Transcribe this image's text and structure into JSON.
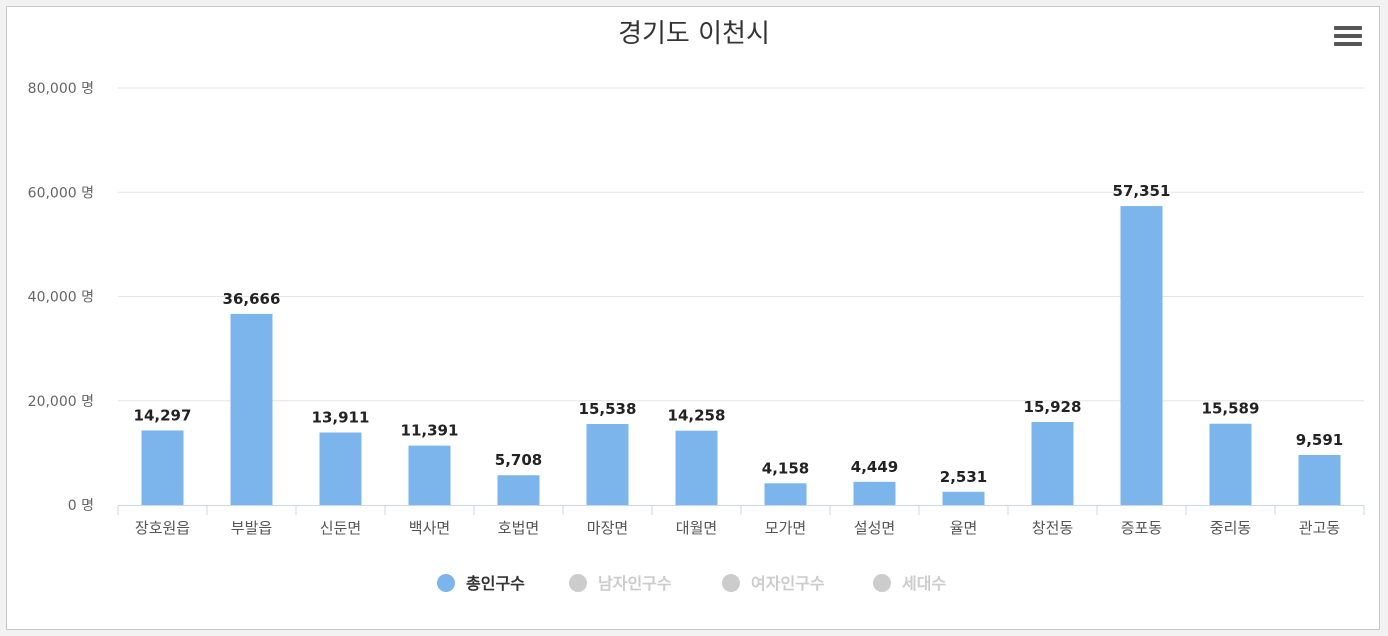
{
  "chart_data": {
    "type": "bar",
    "title": "경기도 이천시",
    "categories": [
      "장호원읍",
      "부발읍",
      "신둔면",
      "백사면",
      "호법면",
      "마장면",
      "대월면",
      "모가면",
      "설성면",
      "율면",
      "창전동",
      "증포동",
      "중리동",
      "관고동"
    ],
    "series": [
      {
        "name": "총인구수",
        "values": [
          14297,
          36666,
          13911,
          11391,
          5708,
          15538,
          14258,
          4158,
          4449,
          2531,
          15928,
          57351,
          15589,
          9591
        ],
        "data_labels": [
          "14,297",
          "36,666",
          "13,911",
          "11,391",
          "5,708",
          "15,538",
          "14,258",
          "4,158",
          "4,449",
          "2,531",
          "15,928",
          "57,351",
          "15,589",
          "9,591"
        ]
      }
    ],
    "y_ticks": [
      0,
      20000,
      40000,
      60000,
      80000
    ],
    "y_tick_labels": [
      "0 명",
      "20,000 명",
      "40,000 명",
      "60,000 명",
      "80,000 명"
    ],
    "ylim": [
      0,
      80000
    ],
    "xlabel": "",
    "ylabel": "",
    "grid": true,
    "legend": [
      {
        "label": "총인구수",
        "active": true
      },
      {
        "label": "남자인구수",
        "active": false
      },
      {
        "label": "여자인구수",
        "active": false
      },
      {
        "label": "세대수",
        "active": false
      }
    ],
    "legend_position": "bottom-center",
    "colors": {
      "bar": "#7cb5ec",
      "inactive": "#cccccc",
      "label": "#222222",
      "axis_text": "#666666",
      "grid": "#e6e6e6",
      "axis_line": "#ccd6eb",
      "legend_active": "#333333"
    }
  },
  "menu": {
    "icon": "hamburger-menu-icon"
  }
}
